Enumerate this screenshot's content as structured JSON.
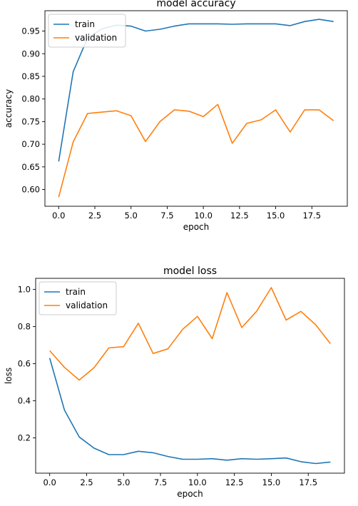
{
  "chart_data": [
    {
      "type": "line",
      "title": "model accuracy",
      "xlabel": "epoch",
      "ylabel": "accuracy",
      "xlim": [
        -0.95,
        19.95
      ],
      "ylim": [
        0.563,
        0.995
      ],
      "xticks": [
        0,
        2.5,
        5,
        7.5,
        10,
        12.5,
        15,
        17.5
      ],
      "xtick_labels": [
        "0.0",
        "2.5",
        "5.0",
        "7.5",
        "10.0",
        "12.5",
        "15.0",
        "17.5"
      ],
      "yticks": [
        0.6,
        0.65,
        0.7,
        0.75,
        0.8,
        0.85,
        0.9,
        0.95
      ],
      "ytick_labels": [
        "0.60",
        "0.65",
        "0.70",
        "0.75",
        "0.80",
        "0.85",
        "0.90",
        "0.95"
      ],
      "legend": "upper-left",
      "grid": false,
      "x": [
        0,
        1,
        2,
        3,
        4,
        5,
        6,
        7,
        8,
        9,
        10,
        11,
        12,
        13,
        14,
        15,
        16,
        17,
        18,
        19
      ],
      "series": [
        {
          "name": "train",
          "color": "#1f77b4",
          "values": [
            0.662,
            0.86,
            0.935,
            0.955,
            0.963,
            0.961,
            0.95,
            0.954,
            0.961,
            0.966,
            0.966,
            0.966,
            0.965,
            0.966,
            0.966,
            0.966,
            0.962,
            0.971,
            0.976,
            0.971
          ]
        },
        {
          "name": "validation",
          "color": "#ff7f0e",
          "values": [
            0.583,
            0.705,
            0.768,
            0.771,
            0.774,
            0.763,
            0.706,
            0.75,
            0.776,
            0.773,
            0.761,
            0.788,
            0.702,
            0.746,
            0.754,
            0.776,
            0.727,
            0.776,
            0.776,
            0.752
          ]
        }
      ]
    },
    {
      "type": "line",
      "title": "model loss",
      "xlabel": "epoch",
      "ylabel": "loss",
      "xlim": [
        -0.95,
        19.95
      ],
      "ylim": [
        0.01,
        1.06
      ],
      "xticks": [
        0,
        2.5,
        5,
        7.5,
        10,
        12.5,
        15,
        17.5
      ],
      "xtick_labels": [
        "0.0",
        "2.5",
        "5.0",
        "7.5",
        "10.0",
        "12.5",
        "15.0",
        "17.5"
      ],
      "yticks": [
        0.2,
        0.4,
        0.6,
        0.8,
        1.0
      ],
      "ytick_labels": [
        "0.2",
        "0.4",
        "0.6",
        "0.8",
        "1.0"
      ],
      "legend": "upper-left",
      "grid": false,
      "x": [
        0,
        1,
        2,
        3,
        4,
        5,
        6,
        7,
        8,
        9,
        10,
        11,
        12,
        13,
        14,
        15,
        16,
        17,
        18,
        19
      ],
      "series": [
        {
          "name": "train",
          "color": "#1f77b4",
          "values": [
            0.63,
            0.35,
            0.205,
            0.145,
            0.11,
            0.11,
            0.128,
            0.12,
            0.1,
            0.085,
            0.085,
            0.088,
            0.08,
            0.088,
            0.085,
            0.088,
            0.092,
            0.072,
            0.062,
            0.07
          ]
        },
        {
          "name": "validation",
          "color": "#ff7f0e",
          "values": [
            0.67,
            0.58,
            0.512,
            0.578,
            0.685,
            0.692,
            0.818,
            0.655,
            0.68,
            0.785,
            0.855,
            0.735,
            0.983,
            0.795,
            0.882,
            1.01,
            0.835,
            0.882,
            0.81,
            0.708
          ]
        }
      ]
    }
  ]
}
